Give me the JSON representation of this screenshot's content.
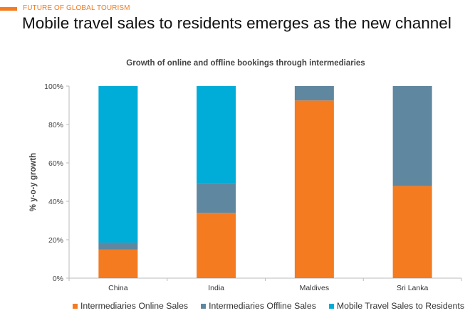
{
  "header": {
    "kicker": "FUTURE OF GLOBAL TOURISM",
    "title": "Mobile travel sales to residents emerges as the new channel"
  },
  "chart_data": {
    "type": "bar",
    "stacked": true,
    "title": "Growth of online and offline bookings through intermediaries",
    "xlabel": "",
    "ylabel": "% y-o-y growth",
    "ylim": [
      0,
      100
    ],
    "yticks": [
      "0%",
      "20%",
      "40%",
      "60%",
      "80%",
      "100%"
    ],
    "categories": [
      "China",
      "India",
      "Maldives",
      "Sri Lanka"
    ],
    "series": [
      {
        "name": "Intermediaries Online Sales",
        "color": "#f47b20",
        "values": [
          15,
          34,
          92.5,
          48
        ]
      },
      {
        "name": "Intermediaries Offline Sales",
        "color": "#5f87a0",
        "values": [
          3.5,
          15.5,
          7.5,
          52
        ]
      },
      {
        "name": "Mobile Travel Sales to Residents",
        "color": "#00acd8",
        "values": [
          81.5,
          50.5,
          0,
          0
        ]
      }
    ],
    "grid": false,
    "legend": "bottom"
  }
}
